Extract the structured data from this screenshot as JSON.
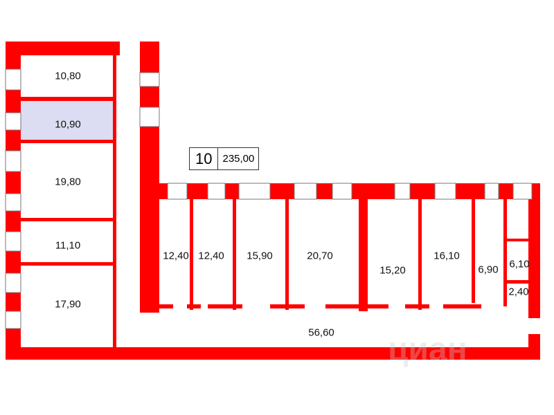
{
  "plan": {
    "unit_number": "10",
    "total_area": "235,00",
    "wall_color": "#ff0000",
    "highlight_color": "#dcdcf2",
    "rooms": [
      {
        "area": "10,80"
      },
      {
        "area": "10,90",
        "highlighted": true
      },
      {
        "area": "19,80"
      },
      {
        "area": "11,10"
      },
      {
        "area": "17,90"
      },
      {
        "area": "12,40"
      },
      {
        "area": "12,40"
      },
      {
        "area": "15,90"
      },
      {
        "area": "20,70"
      },
      {
        "area": "15,20"
      },
      {
        "area": "16,10"
      },
      {
        "area": "6,90"
      },
      {
        "area": "6,10"
      },
      {
        "area": "2,40"
      },
      {
        "area": "56,60"
      }
    ],
    "watermark": "циан"
  }
}
